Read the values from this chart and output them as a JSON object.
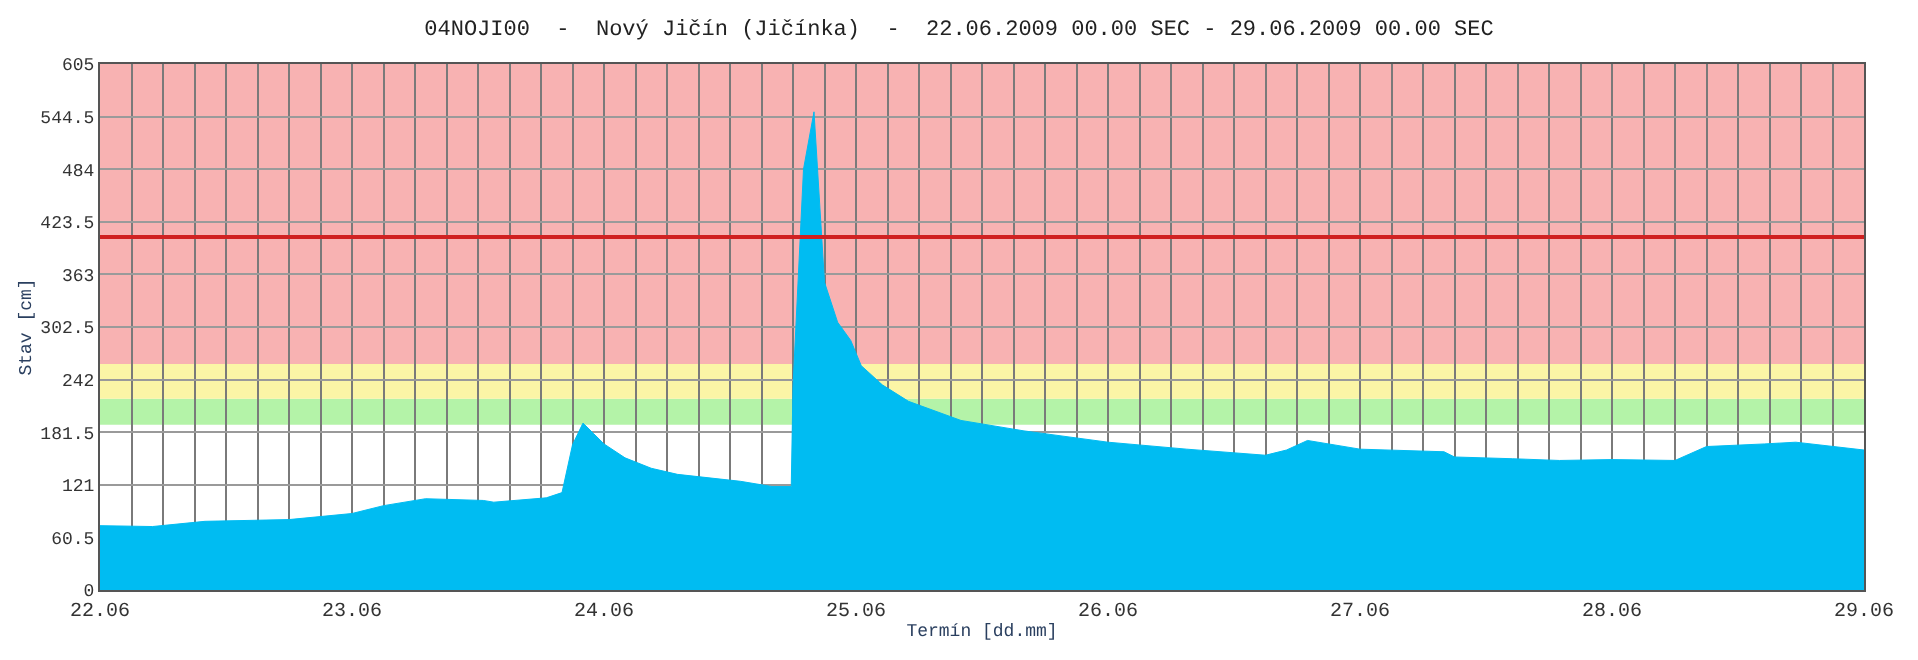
{
  "chart_data": {
    "type": "area",
    "title": "04NOJI00  -  Nový Jičín (Jičínka)  -  22.06.2009 00.00 SEC - 29.06.2009 00.00 SEC",
    "xlabel": "Termín [dd.mm]",
    "ylabel": "Stav [cm]",
    "x": [
      "2009-06-22T00:00",
      "2009-06-22T05:00",
      "2009-06-22T10:00",
      "2009-06-22T18:00",
      "2009-06-23T00:00",
      "2009-06-23T03:00",
      "2009-06-23T07:00",
      "2009-06-23T12:30",
      "2009-06-23T13:30",
      "2009-06-23T18:30",
      "2009-06-23T20:00",
      "2009-06-23T21:00",
      "2009-06-23T22:00",
      "2009-06-23T23:00",
      "2009-06-24T00:00",
      "2009-06-24T02:00",
      "2009-06-24T04:30",
      "2009-06-24T07:00",
      "2009-06-24T13:00",
      "2009-06-24T16:00",
      "2009-06-24T17:50",
      "2009-06-24T18:00",
      "2009-06-24T19:00",
      "2009-06-24T20:00",
      "2009-06-24T21:00",
      "2009-06-24T22:15",
      "2009-06-24T23:30",
      "2009-06-25T00:30",
      "2009-06-25T02:30",
      "2009-06-25T05:00",
      "2009-06-25T10:00",
      "2009-06-25T16:00",
      "2009-06-26T00:00",
      "2009-06-26T07:30",
      "2009-06-26T15:00",
      "2009-06-26T17:00",
      "2009-06-26T19:00",
      "2009-06-26T22:00",
      "2009-06-27T00:00",
      "2009-06-27T08:00",
      "2009-06-27T09:00",
      "2009-06-27T14:30",
      "2009-06-27T19:00",
      "2009-06-28T00:00",
      "2009-06-28T06:00",
      "2009-06-28T09:00",
      "2009-06-28T14:30",
      "2009-06-28T17:30",
      "2009-06-29T00:00"
    ],
    "series": [
      {
        "color": "#00bcf2",
        "values": [
          74,
          73,
          79,
          81,
          88,
          97,
          105,
          103,
          101,
          106,
          112,
          167,
          192,
          180,
          168,
          152,
          140,
          133,
          125,
          119,
          119,
          234,
          484,
          550,
          354,
          308,
          287,
          258,
          236,
          217,
          195,
          183,
          170,
          162,
          155,
          161,
          172,
          166,
          162,
          159,
          153,
          151,
          149,
          150,
          149,
          165,
          168,
          170,
          161
        ]
      }
    ],
    "xlim": [
      "2009-06-22",
      "2009-06-29"
    ],
    "xticks": [
      {
        "value": "2009-06-22T00:00",
        "label": "22.06"
      },
      {
        "value": "2009-06-22T03:00",
        "label": null
      },
      {
        "value": "2009-06-22T06:00",
        "label": null
      },
      {
        "value": "2009-06-22T09:00",
        "label": null
      },
      {
        "value": "2009-06-22T12:00",
        "label": null
      },
      {
        "value": "2009-06-22T15:00",
        "label": null
      },
      {
        "value": "2009-06-22T18:00",
        "label": null
      },
      {
        "value": "2009-06-22T21:00",
        "label": null
      },
      {
        "value": "2009-06-23T00:00",
        "label": "23.06"
      },
      {
        "value": "2009-06-23T03:00",
        "label": null
      },
      {
        "value": "2009-06-23T06:00",
        "label": null
      },
      {
        "value": "2009-06-23T09:00",
        "label": null
      },
      {
        "value": "2009-06-23T12:00",
        "label": null
      },
      {
        "value": "2009-06-23T15:00",
        "label": null
      },
      {
        "value": "2009-06-23T18:00",
        "label": null
      },
      {
        "value": "2009-06-23T21:00",
        "label": null
      },
      {
        "value": "2009-06-24T00:00",
        "label": "24.06"
      },
      {
        "value": "2009-06-24T03:00",
        "label": null
      },
      {
        "value": "2009-06-24T06:00",
        "label": null
      },
      {
        "value": "2009-06-24T09:00",
        "label": null
      },
      {
        "value": "2009-06-24T12:00",
        "label": null
      },
      {
        "value": "2009-06-24T15:00",
        "label": null
      },
      {
        "value": "2009-06-24T18:00",
        "label": null
      },
      {
        "value": "2009-06-24T21:00",
        "label": null
      },
      {
        "value": "2009-06-25T00:00",
        "label": "25.06"
      },
      {
        "value": "2009-06-25T03:00",
        "label": null
      },
      {
        "value": "2009-06-25T06:00",
        "label": null
      },
      {
        "value": "2009-06-25T09:00",
        "label": null
      },
      {
        "value": "2009-06-25T12:00",
        "label": null
      },
      {
        "value": "2009-06-25T15:00",
        "label": null
      },
      {
        "value": "2009-06-25T18:00",
        "label": null
      },
      {
        "value": "2009-06-25T21:00",
        "label": null
      },
      {
        "value": "2009-06-26T00:00",
        "label": "26.06"
      },
      {
        "value": "2009-06-26T03:00",
        "label": null
      },
      {
        "value": "2009-06-26T06:00",
        "label": null
      },
      {
        "value": "2009-06-26T09:00",
        "label": null
      },
      {
        "value": "2009-06-26T12:00",
        "label": null
      },
      {
        "value": "2009-06-26T15:00",
        "label": null
      },
      {
        "value": "2009-06-26T18:00",
        "label": null
      },
      {
        "value": "2009-06-26T21:00",
        "label": null
      },
      {
        "value": "2009-06-27T00:00",
        "label": "27.06"
      },
      {
        "value": "2009-06-27T03:00",
        "label": null
      },
      {
        "value": "2009-06-27T06:00",
        "label": null
      },
      {
        "value": "2009-06-27T09:00",
        "label": null
      },
      {
        "value": "2009-06-27T12:00",
        "label": null
      },
      {
        "value": "2009-06-27T15:00",
        "label": null
      },
      {
        "value": "2009-06-27T18:00",
        "label": null
      },
      {
        "value": "2009-06-27T21:00",
        "label": null
      },
      {
        "value": "2009-06-28T00:00",
        "label": "28.06"
      },
      {
        "value": "2009-06-28T03:00",
        "label": null
      },
      {
        "value": "2009-06-28T06:00",
        "label": null
      },
      {
        "value": "2009-06-28T09:00",
        "label": null
      },
      {
        "value": "2009-06-28T12:00",
        "label": null
      },
      {
        "value": "2009-06-28T15:00",
        "label": null
      },
      {
        "value": "2009-06-28T18:00",
        "label": null
      },
      {
        "value": "2009-06-28T21:00",
        "label": null
      },
      {
        "value": "2009-06-29T00:00",
        "label": "29.06"
      }
    ],
    "ylim": [
      0,
      605
    ],
    "yticks": [
      0,
      60.5,
      121,
      181.5,
      242,
      302.5,
      363,
      423.5,
      484,
      544.5,
      605
    ],
    "bands": [
      {
        "axis": "y",
        "from": 190,
        "to": 220,
        "color": "#b4f3a8"
      },
      {
        "axis": "y",
        "from": 220,
        "to": 260,
        "color": "#fbf5a6"
      },
      {
        "axis": "y",
        "from": 260,
        "to": 605,
        "color": "#f8b2b2"
      }
    ],
    "ref_lines": [
      {
        "axis": "y",
        "value": 406,
        "color": "#d02020"
      }
    ],
    "grid": true
  }
}
